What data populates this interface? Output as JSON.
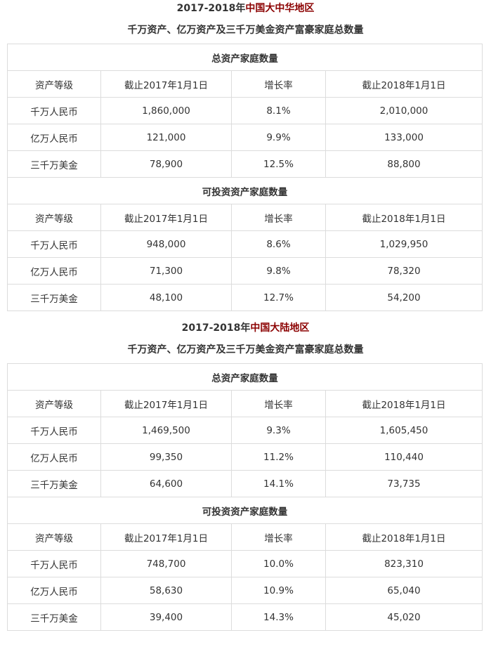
{
  "regions": [
    {
      "title_prefix": "2017-2018年",
      "title_highlight": "中国大中华地区",
      "subtitle": "千万资产、亿万资产及三千万美金资产富豪家庭总数量",
      "sections": [
        {
          "heading": "总资产家庭数量",
          "columns": [
            "资产等级",
            "截止2017年1月1日",
            "增长率",
            "截止2018年1月1日"
          ],
          "rows": [
            [
              "千万人民币",
              "1,860,000",
              "8.1%",
              "2,010,000"
            ],
            [
              "亿万人民币",
              "121,000",
              "9.9%",
              "133,000"
            ],
            [
              "三千万美金",
              "78,900",
              "12.5%",
              "88,800"
            ]
          ]
        },
        {
          "heading": "可投资资产家庭数量",
          "columns": [
            "资产等级",
            "截止2017年1月1日",
            "增长率",
            "截止2018年1月1日"
          ],
          "rows": [
            [
              "千万人民币",
              "948,000",
              "8.6%",
              "1,029,950"
            ],
            [
              "亿万人民币",
              "71,300",
              "9.8%",
              "78,320"
            ],
            [
              "三千万美金",
              "48,100",
              "12.7%",
              "54,200"
            ]
          ]
        }
      ]
    },
    {
      "title_prefix": "2017-2018年",
      "title_highlight": "中国大陆地区",
      "subtitle": "千万资产、亿万资产及三千万美金资产富豪家庭总数量",
      "sections": [
        {
          "heading": "总资产家庭数量",
          "columns": [
            "资产等级",
            "截止2017年1月1日",
            "增长率",
            "截止2018年1月1日"
          ],
          "rows": [
            [
              "千万人民币",
              "1,469,500",
              "9.3%",
              "1,605,450"
            ],
            [
              "亿万人民币",
              "99,350",
              "11.2%",
              "110,440"
            ],
            [
              "三千万美金",
              "64,600",
              "14.1%",
              "73,735"
            ]
          ]
        },
        {
          "heading": "可投资资产家庭数量",
          "columns": [
            "资产等级",
            "截止2017年1月1日",
            "增长率",
            "截止2018年1月1日"
          ],
          "rows": [
            [
              "千万人民币",
              "748,700",
              "10.0%",
              "823,310"
            ],
            [
              "亿万人民币",
              "58,630",
              "10.9%",
              "65,040"
            ],
            [
              "三千万美金",
              "39,400",
              "14.3%",
              "45,020"
            ]
          ]
        }
      ]
    }
  ]
}
